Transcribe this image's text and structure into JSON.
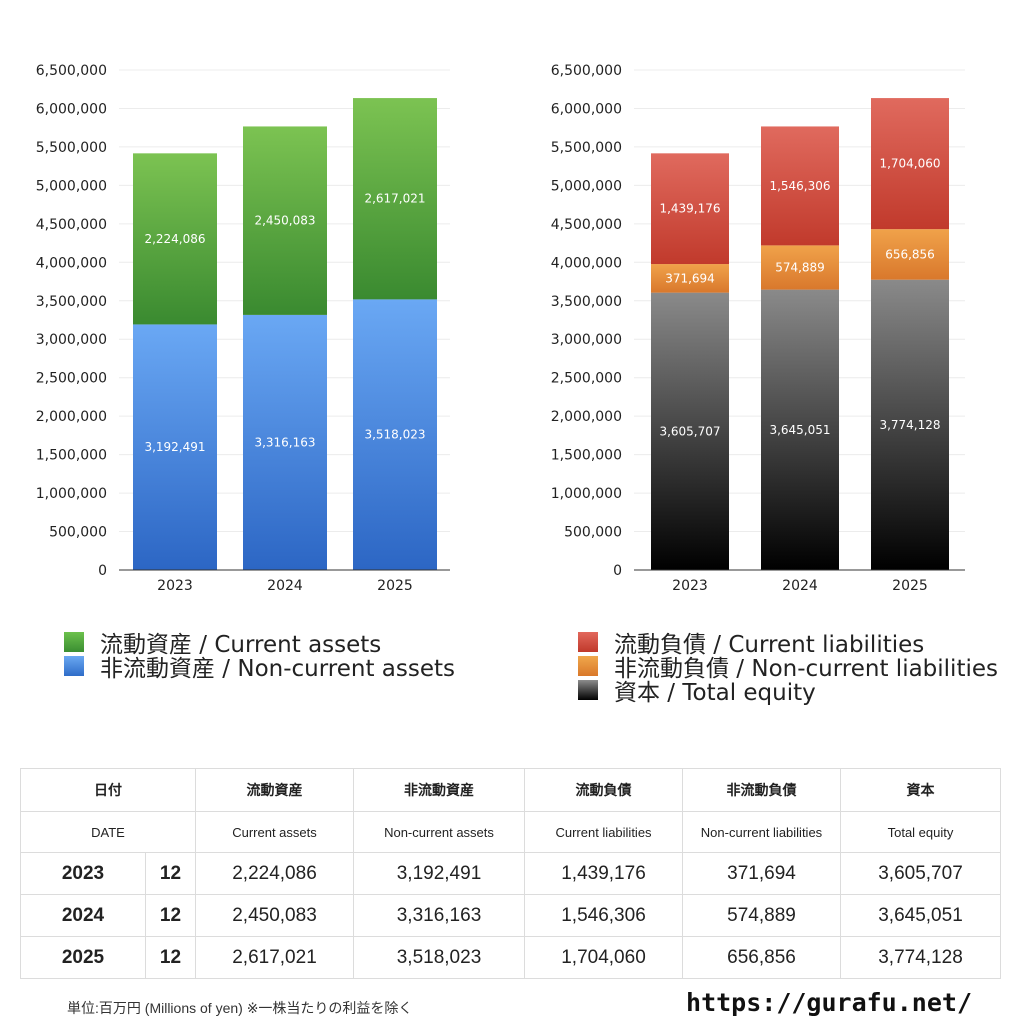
{
  "chart_data": [
    {
      "type": "bar",
      "stacked": true,
      "categories": [
        "2023",
        "2024",
        "2025"
      ],
      "ylim": [
        0,
        6500000
      ],
      "yticks": [
        "0",
        "500,000",
        "1,000,000",
        "1,500,000",
        "2,000,000",
        "2,500,000",
        "3,000,000",
        "3,500,000",
        "4,000,000",
        "4,500,000",
        "5,000,000",
        "5,500,000",
        "6,000,000",
        "6,500,000"
      ],
      "grid": true,
      "series": [
        {
          "name": "非流動資産 / Non-current assets",
          "values": [
            3192491,
            3316163,
            3518023
          ],
          "labels": [
            "3,192,491",
            "3,316,163",
            "3,518,023"
          ],
          "color": "#4a8ae0"
        },
        {
          "name": "流動資産 / Current assets",
          "values": [
            2224086,
            2450083,
            2617021
          ],
          "labels": [
            "2,224,086",
            "2,450,083",
            "2,617,021"
          ],
          "color": "#52a83e"
        }
      ]
    },
    {
      "type": "bar",
      "stacked": true,
      "categories": [
        "2023",
        "2024",
        "2025"
      ],
      "ylim": [
        0,
        6500000
      ],
      "yticks": [
        "0",
        "500,000",
        "1,000,000",
        "1,500,000",
        "2,000,000",
        "2,500,000",
        "3,000,000",
        "3,500,000",
        "4,000,000",
        "4,500,000",
        "5,000,000",
        "5,500,000",
        "6,000,000",
        "6,500,000"
      ],
      "grid": true,
      "series": [
        {
          "name": "資本 / Total equity",
          "values": [
            3605707,
            3645051,
            3774128
          ],
          "labels": [
            "3,605,707",
            "3,645,051",
            "3,774,128"
          ],
          "color": "#333333"
        },
        {
          "name": "非流動負債 / Non-current liabilities",
          "values": [
            371694,
            574889,
            656856
          ],
          "labels": [
            "371,694",
            "574,889",
            "656,856"
          ],
          "color": "#e08a3a"
        },
        {
          "name": "流動負債 / Current liabilities",
          "values": [
            1439176,
            1546306,
            1704060
          ],
          "labels": [
            "1,439,176",
            "1,546,306",
            "1,704,060"
          ],
          "color": "#cf4a3c"
        }
      ]
    }
  ],
  "legend_left": [
    "流動資産 / Current assets",
    "非流動資産 / Non-current assets"
  ],
  "legend_right": [
    "流動負債 / Current liabilities",
    "非流動負債 / Non-current liabilities",
    "資本 / Total equity"
  ],
  "table": {
    "header_jp": [
      "日付",
      "流動資産",
      "非流動資産",
      "流動負債",
      "非流動負債",
      "資本"
    ],
    "header_en": [
      "DATE",
      "Current assets",
      "Non-current assets",
      "Current liabilities",
      "Non-current liabilities",
      "Total equity"
    ],
    "rows": [
      {
        "year": "2023",
        "month": "12",
        "values": [
          "2,224,086",
          "3,192,491",
          "1,439,176",
          "371,694",
          "3,605,707"
        ]
      },
      {
        "year": "2024",
        "month": "12",
        "values": [
          "2,450,083",
          "3,316,163",
          "1,546,306",
          "574,889",
          "3,645,051"
        ]
      },
      {
        "year": "2025",
        "month": "12",
        "values": [
          "2,617,021",
          "3,518,023",
          "1,704,060",
          "656,856",
          "3,774,128"
        ]
      }
    ]
  },
  "footnote": "単位:百万円 (Millions of yen) ※一株当たりの利益を除く",
  "site": "https://gurafu.net/"
}
